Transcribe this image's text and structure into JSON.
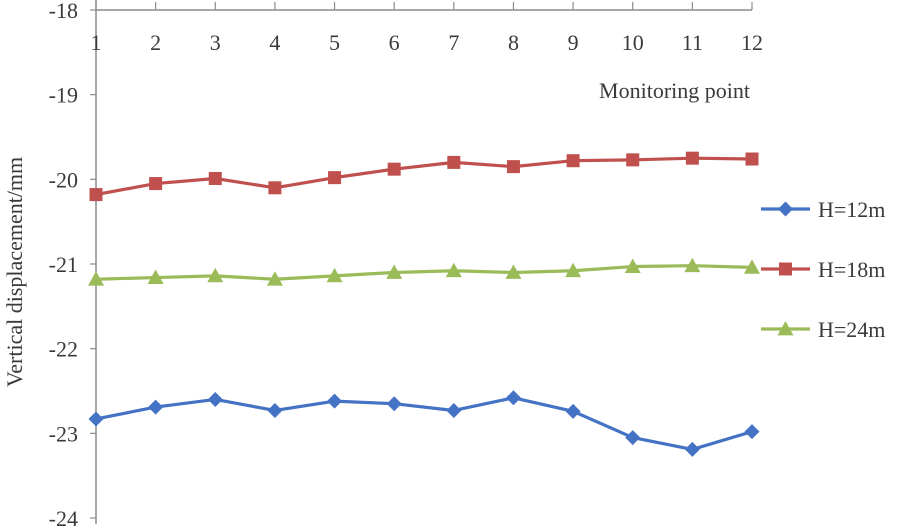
{
  "chart_data": {
    "type": "line",
    "xlabel": "Monitoring point",
    "ylabel": "Vertical displacement/mm",
    "categories": [
      "1",
      "2",
      "3",
      "4",
      "5",
      "6",
      "7",
      "8",
      "9",
      "10",
      "11",
      "12"
    ],
    "ylim": [
      -24,
      -18
    ],
    "yticks": [
      "-18",
      "-19",
      "-20",
      "-21",
      "-22",
      "-23",
      "-24"
    ],
    "ytick_values": [
      -18,
      -19,
      -20,
      -21,
      -22,
      -23,
      -24
    ],
    "x_axis_position": "top",
    "grid": false,
    "legend_position": "right",
    "series": [
      {
        "name": "H=12m",
        "color": "#4472C4",
        "marker": "diamond",
        "values": [
          -22.83,
          -22.69,
          -22.6,
          -22.73,
          -22.62,
          -22.65,
          -22.73,
          -22.58,
          -22.74,
          -23.05,
          -23.19,
          -22.98
        ]
      },
      {
        "name": "H=18m",
        "color": "#C0504D",
        "marker": "square",
        "values": [
          -20.18,
          -20.05,
          -19.99,
          -20.1,
          -19.98,
          -19.88,
          -19.8,
          -19.85,
          -19.78,
          -19.77,
          -19.75,
          -19.76
        ]
      },
      {
        "name": "H=24m",
        "color": "#9BBB59",
        "marker": "triangle",
        "values": [
          -21.18,
          -21.16,
          -21.14,
          -21.18,
          -21.14,
          -21.1,
          -21.08,
          -21.1,
          -21.08,
          -21.03,
          -21.02,
          -21.04
        ]
      }
    ]
  }
}
